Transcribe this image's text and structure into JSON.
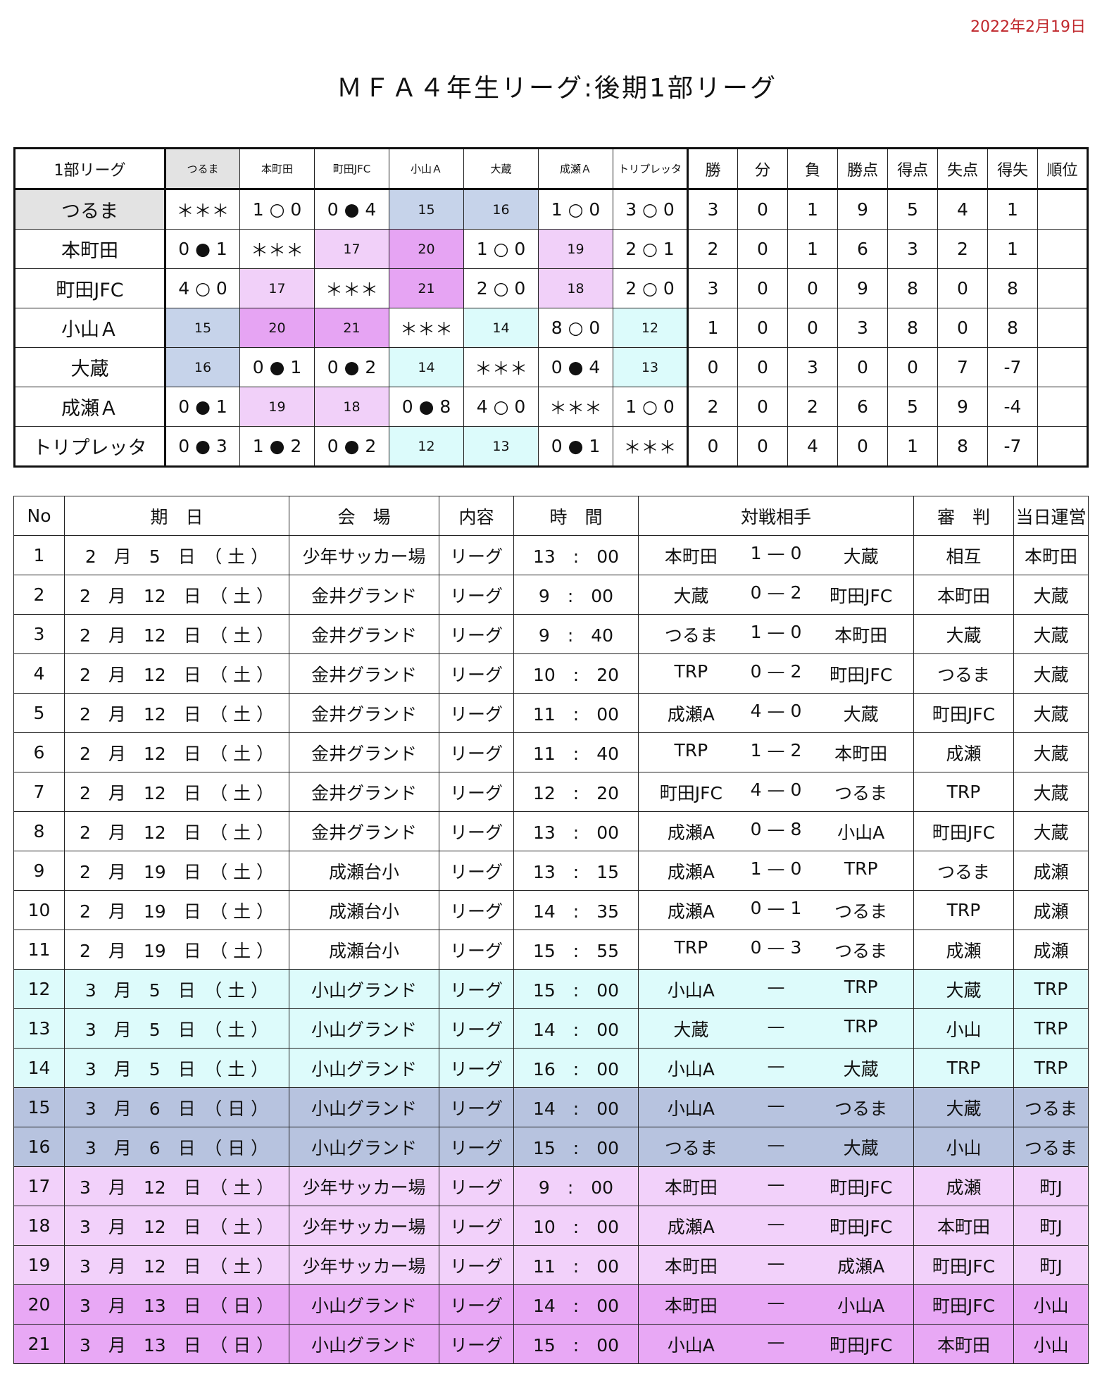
{
  "header": {
    "date": "2022年2月19日",
    "title": "ＭＦＡ４年生リーグ:後期1部リーグ"
  },
  "standings": {
    "columns": [
      "1部リーグ",
      "つるま",
      "本町田",
      "町田JFC",
      "小山Ａ",
      "大蔵",
      "成瀬Ａ",
      "トリプレッタ",
      "勝",
      "分",
      "負",
      "勝点",
      "得点",
      "失点",
      "得失",
      "順位"
    ],
    "rows": [
      {
        "team": "つるま",
        "results": [
          "＊＊＊",
          "1 ○ 0",
          "0 ● 4",
          15,
          16,
          "1 ○ 0",
          "3 ○ 0"
        ],
        "stats": [
          3,
          0,
          1,
          9,
          5,
          4,
          1
        ]
      },
      {
        "team": "本町田",
        "results": [
          "0 ● 1",
          "＊＊＊",
          17,
          20,
          "1 ○ 0",
          19,
          "2 ○ 1"
        ],
        "stats": [
          2,
          0,
          1,
          6,
          3,
          2,
          1
        ]
      },
      {
        "team": "町田JFC",
        "results": [
          "4 ○ 0",
          17,
          "＊＊＊",
          21,
          "2 ○ 0",
          18,
          "2 ○ 0"
        ],
        "stats": [
          3,
          0,
          0,
          9,
          8,
          0,
          8
        ]
      },
      {
        "team": "小山Ａ",
        "results": [
          15,
          20,
          21,
          "＊＊＊",
          14,
          "8 ○ 0",
          12
        ],
        "stats": [
          1,
          0,
          0,
          3,
          8,
          0,
          8
        ]
      },
      {
        "team": "大蔵",
        "results": [
          16,
          "0 ● 1",
          "0 ● 2",
          14,
          "＊＊＊",
          "0 ● 4",
          13
        ],
        "stats": [
          0,
          0,
          3,
          0,
          0,
          7,
          -7
        ]
      },
      {
        "team": "成瀬Ａ",
        "results": [
          "0 ● 1",
          19,
          18,
          "0 ● 8",
          "4 ○ 0",
          "＊＊＊",
          "1 ○ 0"
        ],
        "stats": [
          2,
          0,
          2,
          6,
          5,
          9,
          -4
        ]
      },
      {
        "team": "トリプレッタ",
        "results": [
          "0 ● 3",
          "1 ● 2",
          "0 ● 2",
          12,
          13,
          "0 ● 1",
          "＊＊＊"
        ],
        "stats": [
          0,
          0,
          4,
          0,
          1,
          8,
          -7
        ]
      }
    ]
  },
  "schedule": {
    "columns": [
      "No",
      "期　日",
      "会　場",
      "内容",
      "時　間",
      "対戦相手",
      "審　判",
      "当日運営"
    ],
    "rows": [
      [
        1,
        "2　月　5　日　（ 土 ）",
        "少年サッカー場",
        "リーグ",
        "13　:　00",
        "本町田",
        "1 — 0",
        "大蔵",
        "相互",
        "本町田"
      ],
      [
        2,
        "2　月　12　日　（ 土 ）",
        "金井グランド",
        "リーグ",
        "9　:　00",
        "大蔵",
        "0 — 2",
        "町田JFC",
        "本町田",
        "大蔵"
      ],
      [
        3,
        "2　月　12　日　（ 土 ）",
        "金井グランド",
        "リーグ",
        "9　:　40",
        "つるま",
        "1 — 0",
        "本町田",
        "大蔵",
        "大蔵"
      ],
      [
        4,
        "2　月　12　日　（ 土 ）",
        "金井グランド",
        "リーグ",
        "10　:　20",
        "TRP",
        "0 — 2",
        "町田JFC",
        "つるま",
        "大蔵"
      ],
      [
        5,
        "2　月　12　日　（ 土 ）",
        "金井グランド",
        "リーグ",
        "11　:　00",
        "成瀬A",
        "4 — 0",
        "大蔵",
        "町田JFC",
        "大蔵"
      ],
      [
        6,
        "2　月　12　日　（ 土 ）",
        "金井グランド",
        "リーグ",
        "11　:　40",
        "TRP",
        "1 — 2",
        "本町田",
        "成瀬",
        "大蔵"
      ],
      [
        7,
        "2　月　12　日　（ 土 ）",
        "金井グランド",
        "リーグ",
        "12　:　20",
        "町田JFC",
        "4 — 0",
        "つるま",
        "TRP",
        "大蔵"
      ],
      [
        8,
        "2　月　12　日　（ 土 ）",
        "金井グランド",
        "リーグ",
        "13　:　00",
        "成瀬A",
        "0 — 8",
        "小山A",
        "町田JFC",
        "大蔵"
      ],
      [
        9,
        "2　月　19　日　（ 土 ）",
        "成瀬台小",
        "リーグ",
        "13　:　15",
        "成瀬A",
        "1 — 0",
        "TRP",
        "つるま",
        "成瀬"
      ],
      [
        10,
        "2　月　19　日　（ 土 ）",
        "成瀬台小",
        "リーグ",
        "14　:　35",
        "成瀬A",
        "0 — 1",
        "つるま",
        "TRP",
        "成瀬"
      ],
      [
        11,
        "2　月　19　日　（ 土 ）",
        "成瀬台小",
        "リーグ",
        "15　:　55",
        "TRP",
        "0 — 3",
        "つるま",
        "成瀬",
        "成瀬"
      ],
      [
        12,
        "3　月　5　日　（ 土 ）",
        "小山グランド",
        "リーグ",
        "15　:　00",
        "小山A",
        "—",
        "TRP",
        "大蔵",
        "TRP"
      ],
      [
        13,
        "3　月　5　日　（ 土 ）",
        "小山グランド",
        "リーグ",
        "14　:　00",
        "大蔵",
        "—",
        "TRP",
        "小山",
        "TRP"
      ],
      [
        14,
        "3　月　5　日　（ 土 ）",
        "小山グランド",
        "リーグ",
        "16　:　00",
        "小山A",
        "—",
        "大蔵",
        "TRP",
        "TRP"
      ],
      [
        15,
        "3　月　6　日　（ 日 ）",
        "小山グランド",
        "リーグ",
        "14　:　00",
        "小山A",
        "—",
        "つるま",
        "大蔵",
        "つるま"
      ],
      [
        16,
        "3　月　6　日　（ 日 ）",
        "小山グランド",
        "リーグ",
        "15　:　00",
        "つるま",
        "—",
        "大蔵",
        "小山",
        "つるま"
      ],
      [
        17,
        "3　月　12　日　（ 土 ）",
        "少年サッカー場",
        "リーグ",
        "9　:　00",
        "本町田",
        "—",
        "町田JFC",
        "成瀬",
        "町J"
      ],
      [
        18,
        "3　月　12　日　（ 土 ）",
        "少年サッカー場",
        "リーグ",
        "10　:　00",
        "成瀬A",
        "—",
        "町田JFC",
        "本町田",
        "町J"
      ],
      [
        19,
        "3　月　12　日　（ 土 ）",
        "少年サッカー場",
        "リーグ",
        "11　:　00",
        "本町田",
        "—",
        "成瀬A",
        "町田JFC",
        "町J"
      ],
      [
        20,
        "3　月　13　日　（ 日 ）",
        "小山グランド",
        "リーグ",
        "14　:　00",
        "本町田",
        "—",
        "小山A",
        "町田JFC",
        "小山"
      ],
      [
        21,
        "3　月　13　日　（ 日 ）",
        "小山グランド",
        "リーグ",
        "15　:　00",
        "小山A",
        "—",
        "町田JFC",
        "本町田",
        "小山"
      ]
    ]
  }
}
